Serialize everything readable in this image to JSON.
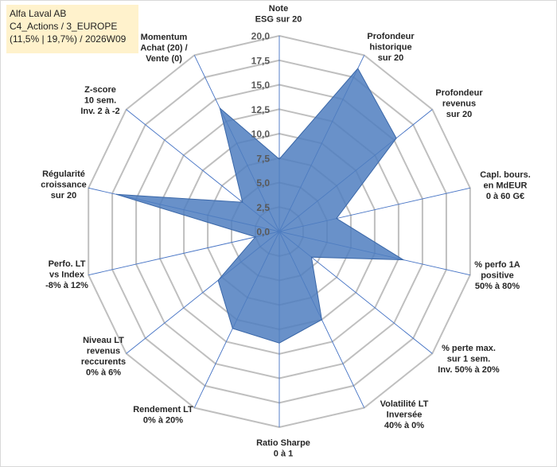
{
  "header": {
    "line1": "Alfa Laval AB",
    "line2": "C4_Actions / 3_EUROPE",
    "line3": "(11,5% | 19,7%) / 2026W09"
  },
  "chart_data": {
    "type": "radar",
    "title": "",
    "rmin": 0,
    "rmax": 20,
    "step": 2.5,
    "tick_labels": [
      "0,0",
      "2,5",
      "5,0",
      "7,5",
      "10,0",
      "12,5",
      "15,0",
      "17,5",
      "20,0"
    ],
    "categories": [
      [
        "Note",
        "ESG sur 20"
      ],
      [
        "Profondeur",
        "historique",
        "sur 20"
      ],
      [
        "Profondeur",
        "revenus",
        "sur 20"
      ],
      [
        "Capl. bours.",
        "en MdEUR",
        "0 à 60 G€"
      ],
      [
        "% perfo 1A",
        "positive",
        "50% à 80%"
      ],
      [
        "% perte max.",
        "sur 1 sem.",
        "Inv. 50% à 20%"
      ],
      [
        "Volatilité LT",
        "Inversée",
        "40% à 0%"
      ],
      [
        "Ratio Sharpe",
        "0 à 1"
      ],
      [
        "Rendement LT",
        "0% à 20%"
      ],
      [
        "Niveau LT",
        "revenus",
        "reccurents",
        "0% à 6%"
      ],
      [
        "Perfo. LT",
        "vs Index",
        "-8% à 12%"
      ],
      [
        "Régularité",
        "croissance",
        "sur 20"
      ],
      [
        "Z-score",
        "10 sem.",
        "Inv. 2 à -2"
      ],
      [
        "Momentum",
        "Achat (20) /",
        "Vente (0)"
      ]
    ],
    "series": [
      {
        "name": "Alfa Laval AB",
        "color": "#4f7ec0",
        "values": [
          7.4,
          18.5,
          15.3,
          6.0,
          13.0,
          4.2,
          10.0,
          11.4,
          11.0,
          8.0,
          2.5,
          17.1,
          4.8,
          14.0
        ]
      }
    ]
  }
}
